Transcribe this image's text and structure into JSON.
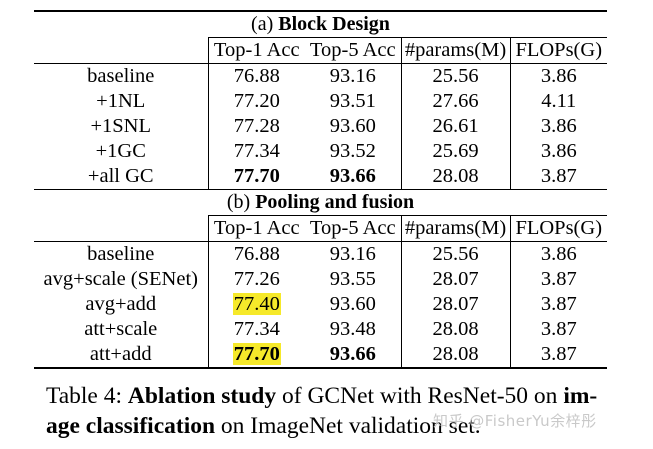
{
  "section_a": {
    "prefix": "(a) ",
    "title": "Block Design",
    "headers": [
      "Top-1 Acc",
      "Top-5 Acc",
      "#params(M)",
      "FLOPs(G)"
    ],
    "rows": [
      {
        "name": "baseline",
        "top1": "76.88",
        "top5": "93.16",
        "params": "25.56",
        "flops": "3.86"
      },
      {
        "name": "+1NL",
        "top1": "77.20",
        "top5": "93.51",
        "params": "27.66",
        "flops": "4.11"
      },
      {
        "name": "+1SNL",
        "top1": "77.28",
        "top5": "93.60",
        "params": "26.61",
        "flops": "3.86"
      },
      {
        "name": "+1GC",
        "top1": "77.34",
        "top5": "93.52",
        "params": "25.69",
        "flops": "3.86"
      },
      {
        "name": "+all GC",
        "top1": "77.70",
        "top5": "93.66",
        "params": "28.08",
        "flops": "3.87"
      }
    ]
  },
  "section_b": {
    "prefix": "(b) ",
    "title": "Pooling and fusion",
    "headers": [
      "Top-1 Acc",
      "Top-5 Acc",
      "#params(M)",
      "FLOPs(G)"
    ],
    "rows": [
      {
        "name": "baseline",
        "top1": "76.88",
        "top5": "93.16",
        "params": "25.56",
        "flops": "3.86"
      },
      {
        "name": "avg+scale (SENet)",
        "top1": "77.26",
        "top5": "93.55",
        "params": "28.07",
        "flops": "3.87"
      },
      {
        "name": "avg+add",
        "top1": "77.40",
        "top5": "93.60",
        "params": "28.07",
        "flops": "3.87"
      },
      {
        "name": "att+scale",
        "top1": "77.34",
        "top5": "93.48",
        "params": "28.08",
        "flops": "3.87"
      },
      {
        "name": "att+add",
        "top1": "77.70",
        "top5": "93.66",
        "params": "28.08",
        "flops": "3.87"
      }
    ]
  },
  "caption": {
    "label": "Table 4: ",
    "bold1": "Ablation study",
    "text1": " of GCNet with ResNet-50 on ",
    "bold2": "im-age classification",
    "text2": " on ImageNet validation set."
  },
  "watermark": "知乎 @FisherYu余梓彤",
  "colors": {
    "highlight": "#f6e92a"
  }
}
